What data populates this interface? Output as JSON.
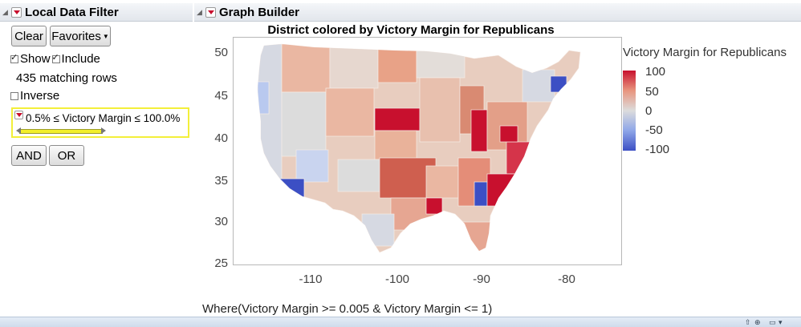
{
  "filter_panel": {
    "title": "Local Data Filter",
    "clear_label": "Clear",
    "favorites_label": "Favorites",
    "show_label": "Show",
    "include_label": "Include",
    "matching_rows": "435 matching rows",
    "inverse_label": "Inverse",
    "range_label": "0.5% ≤ Victory Margin ≤ 100.0%",
    "range_min_pct": 0.5,
    "range_max_pct": 100.0,
    "and_label": "AND",
    "or_label": "OR",
    "show_checked": true,
    "include_checked": true,
    "inverse_checked": false
  },
  "graph": {
    "panel_title": "Graph Builder",
    "chart_title": "District colored by Victory Margin for Republicans",
    "y_ticks": [
      "50",
      "45",
      "40",
      "35",
      "30",
      "25"
    ],
    "x_ticks": [
      "-110",
      "-100",
      "-90",
      "-80"
    ],
    "legend_title": "Victory Margin for Republicans",
    "legend_ticks": [
      "100",
      "50",
      "0",
      "-50",
      "-100"
    ],
    "where_clause": "Where(Victory Margin >= 0.005 & Victory Margin <= 1)",
    "colors": {
      "high": "#c8102e",
      "mid": "#dcdcdc",
      "low": "#3c4fc4",
      "accent_yellow": "#f3ef3a"
    }
  },
  "chart_data": {
    "type": "heatmap",
    "title": "District colored by Victory Margin for Republicans",
    "xlabel": "",
    "ylabel": "",
    "xlim": [
      -119,
      -74
    ],
    "ylim": [
      25,
      51.5
    ],
    "x_ticks": [
      -110,
      -100,
      -90,
      -80
    ],
    "y_ticks": [
      25,
      30,
      35,
      40,
      45,
      50
    ],
    "color_scale": {
      "min": -100,
      "max": 100,
      "legend_title": "Victory Margin for Republicans"
    }
  }
}
